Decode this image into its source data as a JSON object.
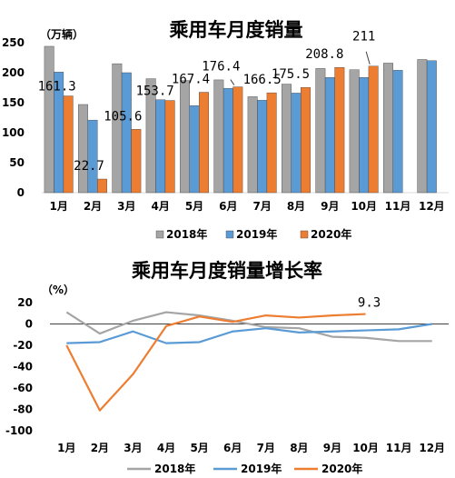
{
  "chart_data": [
    {
      "type": "bar",
      "title": "乘用车月度销量",
      "unit_label": "（万辆）",
      "categories": [
        "1月",
        "2月",
        "3月",
        "4月",
        "5月",
        "6月",
        "7月",
        "8月",
        "9月",
        "10月",
        "11月",
        "12月"
      ],
      "ylim": [
        0,
        250
      ],
      "yticks": [
        0,
        50,
        100,
        150,
        200,
        250
      ],
      "legend_position": "bottom",
      "grid": false,
      "series": [
        {
          "name": "2018年",
          "color": "#a5a5a5",
          "values": [
            244,
            147,
            215,
            190,
            187,
            188,
            160,
            181,
            207,
            205,
            216,
            222
          ]
        },
        {
          "name": "2019年",
          "color": "#5b9bd5",
          "values": [
            201,
            121,
            200,
            155,
            145,
            174,
            154,
            166,
            192,
            192,
            204,
            220
          ]
        },
        {
          "name": "2020年",
          "color": "#ed7d31",
          "values": [
            161.3,
            22.7,
            105.6,
            153.7,
            167.4,
            176.4,
            166.5,
            175.5,
            208.8,
            211,
            null,
            null
          ]
        }
      ],
      "data_labels": [
        "161.3",
        "22.7",
        "105.6",
        "153.7",
        "167.4",
        "176.4",
        "166.5",
        "175.5",
        "208.8",
        "211"
      ]
    },
    {
      "type": "line",
      "title": "乘用车月度销量增长率",
      "unit_label": "（%）",
      "categories": [
        "1月",
        "2月",
        "3月",
        "4月",
        "5月",
        "6月",
        "7月",
        "8月",
        "9月",
        "10月",
        "11月",
        "12月"
      ],
      "ylim": [
        -100,
        20
      ],
      "yticks": [
        20,
        0,
        -20,
        -40,
        -60,
        -80,
        -100
      ],
      "legend_position": "bottom",
      "grid": false,
      "series": [
        {
          "name": "2018年",
          "color": "#a5a5a5",
          "values": [
            11,
            -9,
            3,
            11,
            8,
            3,
            -3,
            -4,
            -12,
            -13,
            -16,
            -16
          ]
        },
        {
          "name": "2019年",
          "color": "#5b9bd5",
          "values": [
            -18,
            -17,
            -7,
            -18,
            -17,
            -7,
            -4,
            -8,
            -7,
            -6,
            -5,
            0
          ]
        },
        {
          "name": "2020年",
          "color": "#ed7d31",
          "values": [
            -20,
            -81,
            -47,
            -2,
            7,
            2,
            8,
            6,
            8,
            9.3,
            null,
            null
          ]
        }
      ],
      "data_labels": [
        "9.3"
      ]
    }
  ]
}
